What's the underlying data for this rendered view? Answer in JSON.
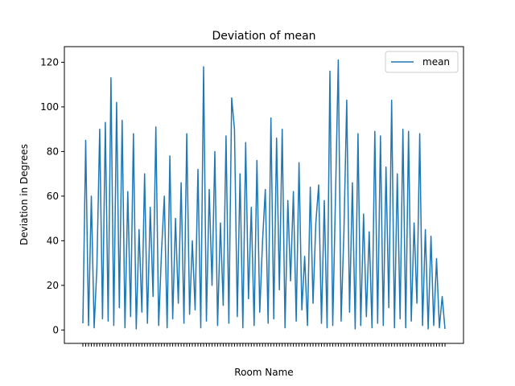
{
  "chart_data": {
    "type": "line",
    "title": "Deviation of mean",
    "xlabel": "Room Name",
    "ylabel": "Deviation in Degrees",
    "ylim": [
      -6,
      127
    ],
    "yticks": [
      0,
      20,
      40,
      60,
      80,
      100,
      120
    ],
    "grid": false,
    "legend_placement": "top-right",
    "series": [
      {
        "name": "mean",
        "color": "#1f77b4",
        "note_x": "x is the categorical room index (room name tick labels are overlapped and unreadable)",
        "values": [
          [
            0,
            3
          ],
          [
            1,
            85
          ],
          [
            2,
            2
          ],
          [
            3,
            60
          ],
          [
            4,
            1
          ],
          [
            5,
            28
          ],
          [
            6,
            90
          ],
          [
            7,
            5
          ],
          [
            8,
            93
          ],
          [
            9,
            4
          ],
          [
            10,
            113
          ],
          [
            11,
            2
          ],
          [
            12,
            102
          ],
          [
            13,
            10
          ],
          [
            14,
            94
          ],
          [
            15,
            1
          ],
          [
            16,
            62
          ],
          [
            17,
            6
          ],
          [
            18,
            88
          ],
          [
            19,
            0.5
          ],
          [
            20,
            45
          ],
          [
            21,
            8
          ],
          [
            22,
            70
          ],
          [
            23,
            3
          ],
          [
            24,
            55
          ],
          [
            25,
            15
          ],
          [
            26,
            91
          ],
          [
            27,
            2
          ],
          [
            28,
            35
          ],
          [
            29,
            60
          ],
          [
            30,
            1
          ],
          [
            31,
            78
          ],
          [
            32,
            5
          ],
          [
            33,
            50
          ],
          [
            34,
            12
          ],
          [
            35,
            66
          ],
          [
            36,
            3
          ],
          [
            37,
            88
          ],
          [
            38,
            7
          ],
          [
            39,
            40
          ],
          [
            40,
            9
          ],
          [
            41,
            72
          ],
          [
            42,
            1
          ],
          [
            43,
            118
          ],
          [
            44,
            4
          ],
          [
            45,
            63
          ],
          [
            46,
            20
          ],
          [
            47,
            80
          ],
          [
            48,
            2
          ],
          [
            49,
            48
          ],
          [
            50,
            11
          ],
          [
            51,
            87
          ],
          [
            52,
            3
          ],
          [
            53,
            104
          ],
          [
            54,
            90
          ],
          [
            55,
            6
          ],
          [
            56,
            70
          ],
          [
            57,
            1
          ],
          [
            58,
            84
          ],
          [
            59,
            14
          ],
          [
            60,
            55
          ],
          [
            61,
            2
          ],
          [
            62,
            76
          ],
          [
            63,
            8
          ],
          [
            64,
            40
          ],
          [
            65,
            63
          ],
          [
            66,
            3
          ],
          [
            67,
            95
          ],
          [
            68,
            5
          ],
          [
            69,
            86
          ],
          [
            70,
            18
          ],
          [
            71,
            90
          ],
          [
            72,
            1
          ],
          [
            73,
            58
          ],
          [
            74,
            22
          ],
          [
            75,
            62
          ],
          [
            76,
            4
          ],
          [
            77,
            75
          ],
          [
            78,
            9
          ],
          [
            79,
            33
          ],
          [
            80,
            2
          ],
          [
            81,
            64
          ],
          [
            82,
            12
          ],
          [
            83,
            48
          ],
          [
            84,
            65
          ],
          [
            85,
            3
          ],
          [
            86,
            58
          ],
          [
            87,
            1
          ],
          [
            88,
            116
          ],
          [
            89,
            2
          ],
          [
            90,
            61
          ],
          [
            91,
            121
          ],
          [
            92,
            4
          ],
          [
            93,
            44
          ],
          [
            94,
            103
          ],
          [
            95,
            8
          ],
          [
            96,
            66
          ],
          [
            97,
            0.5
          ],
          [
            98,
            88
          ],
          [
            99,
            2
          ],
          [
            100,
            52
          ],
          [
            101,
            6
          ],
          [
            102,
            44
          ],
          [
            103,
            1
          ],
          [
            104,
            89
          ],
          [
            105,
            3
          ],
          [
            106,
            87
          ],
          [
            107,
            2
          ],
          [
            108,
            73
          ],
          [
            109,
            10
          ],
          [
            110,
            103
          ],
          [
            111,
            1
          ],
          [
            112,
            70
          ],
          [
            113,
            5
          ],
          [
            114,
            90
          ],
          [
            115,
            1
          ],
          [
            116,
            89
          ],
          [
            117,
            4
          ],
          [
            118,
            48
          ],
          [
            119,
            12
          ],
          [
            120,
            88
          ],
          [
            121,
            2
          ],
          [
            122,
            45
          ],
          [
            123,
            0.5
          ],
          [
            124,
            42
          ],
          [
            125,
            2
          ],
          [
            126,
            32
          ],
          [
            127,
            1
          ],
          [
            128,
            15
          ],
          [
            129,
            0.5
          ]
        ]
      }
    ]
  }
}
